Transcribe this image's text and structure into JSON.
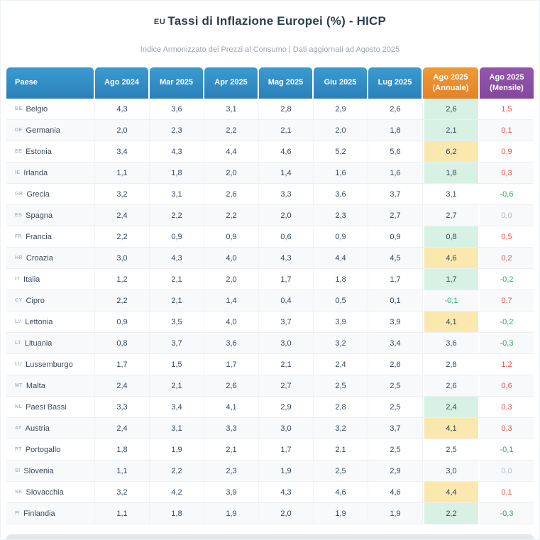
{
  "header": {
    "title_prefix": "EU",
    "title": "Tassi di Inflazione Europei (%) - HICP",
    "subtitle": "Indice Armonizzato dei Prezzi al Consumo | Dati aggiornati ad Agosto 2025"
  },
  "table": {
    "columns": [
      {
        "id": "paese",
        "label": "Paese"
      },
      {
        "id": "ago2024",
        "label": "Ago 2024"
      },
      {
        "id": "mar2025",
        "label": "Mar 2025"
      },
      {
        "id": "apr2025",
        "label": "Apr 2025"
      },
      {
        "id": "mag2025",
        "label": "Mag 2025"
      },
      {
        "id": "giu2025",
        "label": "Giu 2025"
      },
      {
        "id": "lug2025",
        "label": "Lug 2025"
      },
      {
        "id": "ago2025a",
        "label": "Ago 2025",
        "sublabel": "(Annuale)"
      },
      {
        "id": "ago2025m",
        "label": "Ago 2025",
        "sublabel": "(Mensile)"
      }
    ],
    "rows": [
      {
        "code": "BE",
        "country": "Belgio",
        "values": [
          "4,3",
          "3,6",
          "3,1",
          "2,8",
          "2,9",
          "2,6"
        ],
        "annual": "2,6",
        "annual_highlight": "green",
        "annual_color": "dark",
        "monthly": "1,5",
        "monthly_color": "red"
      },
      {
        "code": "DE",
        "country": "Germania",
        "values": [
          "2,0",
          "2,3",
          "2,2",
          "2,1",
          "2,0",
          "1,8"
        ],
        "annual": "2,1",
        "annual_highlight": "green",
        "annual_color": "dark",
        "monthly": "0,1",
        "monthly_color": "red"
      },
      {
        "code": "EE",
        "country": "Estonia",
        "values": [
          "3,4",
          "4,3",
          "4,4",
          "4,6",
          "5,2",
          "5,6"
        ],
        "annual": "6,2",
        "annual_highlight": "yellow",
        "annual_color": "dark",
        "monthly": "0,9",
        "monthly_color": "red"
      },
      {
        "code": "IE",
        "country": "Irlanda",
        "values": [
          "1,1",
          "1,8",
          "2,0",
          "1,4",
          "1,6",
          "1,6"
        ],
        "annual": "1,8",
        "annual_highlight": "green",
        "annual_color": "dark",
        "monthly": "0,3",
        "monthly_color": "red"
      },
      {
        "code": "GR",
        "country": "Grecia",
        "values": [
          "3,2",
          "3,1",
          "2,6",
          "3,3",
          "3,6",
          "3,7"
        ],
        "annual": "3,1",
        "annual_highlight": "none",
        "annual_color": "dark",
        "monthly": "-0,6",
        "monthly_color": "green"
      },
      {
        "code": "ES",
        "country": "Spagna",
        "values": [
          "2,4",
          "2,2",
          "2,2",
          "2,0",
          "2,3",
          "2,7"
        ],
        "annual": "2,7",
        "annual_highlight": "none",
        "annual_color": "dark",
        "monthly": "0,0",
        "monthly_color": "gray"
      },
      {
        "code": "FR",
        "country": "Francia",
        "values": [
          "2,2",
          "0,9",
          "0,9",
          "0,6",
          "0,9",
          "0,9"
        ],
        "annual": "0,8",
        "annual_highlight": "green",
        "annual_color": "dark",
        "monthly": "0,5",
        "monthly_color": "red"
      },
      {
        "code": "HR",
        "country": "Croazia",
        "values": [
          "3,0",
          "4,3",
          "4,0",
          "4,3",
          "4,4",
          "4,5"
        ],
        "annual": "4,6",
        "annual_highlight": "yellow",
        "annual_color": "dark",
        "monthly": "0,2",
        "monthly_color": "red"
      },
      {
        "code": "IT",
        "country": "Italia",
        "values": [
          "1,2",
          "2,1",
          "2,0",
          "1,7",
          "1,8",
          "1,7"
        ],
        "annual": "1,7",
        "annual_highlight": "green",
        "annual_color": "dark",
        "monthly": "-0,2",
        "monthly_color": "green"
      },
      {
        "code": "CY",
        "country": "Cipro",
        "values": [
          "2,2",
          "2,1",
          "1,4",
          "0,4",
          "0,5",
          "0,1"
        ],
        "annual": "-0,1",
        "annual_highlight": "none",
        "annual_color": "green",
        "monthly": "0,7",
        "monthly_color": "red"
      },
      {
        "code": "LV",
        "country": "Lettonia",
        "values": [
          "0,9",
          "3,5",
          "4,0",
          "3,7",
          "3,9",
          "3,9"
        ],
        "annual": "4,1",
        "annual_highlight": "yellow",
        "annual_color": "dark",
        "monthly": "-0,2",
        "monthly_color": "green"
      },
      {
        "code": "LT",
        "country": "Lituania",
        "values": [
          "0,8",
          "3,7",
          "3,6",
          "3,0",
          "3,2",
          "3,4"
        ],
        "annual": "3,6",
        "annual_highlight": "none",
        "annual_color": "dark",
        "monthly": "-0,3",
        "monthly_color": "green"
      },
      {
        "code": "LU",
        "country": "Lussemburgo",
        "values": [
          "1,7",
          "1,5",
          "1,7",
          "2,1",
          "2,4",
          "2,6"
        ],
        "annual": "2,8",
        "annual_highlight": "none",
        "annual_color": "dark",
        "monthly": "1,2",
        "monthly_color": "red"
      },
      {
        "code": "MT",
        "country": "Malta",
        "values": [
          "2,4",
          "2,1",
          "2,6",
          "2,7",
          "2,5",
          "2,5"
        ],
        "annual": "2,6",
        "annual_highlight": "none",
        "annual_color": "dark",
        "monthly": "0,6",
        "monthly_color": "red"
      },
      {
        "code": "NL",
        "country": "Paesi Bassi",
        "values": [
          "3,3",
          "3,4",
          "4,1",
          "2,9",
          "2,8",
          "2,5"
        ],
        "annual": "2,4",
        "annual_highlight": "green",
        "annual_color": "dark",
        "monthly": "0,3",
        "monthly_color": "red"
      },
      {
        "code": "AT",
        "country": "Austria",
        "values": [
          "2,4",
          "3,1",
          "3,3",
          "3,0",
          "3,2",
          "3,7"
        ],
        "annual": "4,1",
        "annual_highlight": "yellow",
        "annual_color": "dark",
        "monthly": "0,3",
        "monthly_color": "red"
      },
      {
        "code": "PT",
        "country": "Portogallo",
        "values": [
          "1,8",
          "1,9",
          "2,1",
          "1,7",
          "2,1",
          "2,5"
        ],
        "annual": "2,5",
        "annual_highlight": "none",
        "annual_color": "dark",
        "monthly": "-0,1",
        "monthly_color": "green"
      },
      {
        "code": "SI",
        "country": "Slovenia",
        "values": [
          "1,1",
          "2,2",
          "2,3",
          "1,9",
          "2,5",
          "2,9"
        ],
        "annual": "3,0",
        "annual_highlight": "none",
        "annual_color": "dark",
        "monthly": "0,0",
        "monthly_color": "gray"
      },
      {
        "code": "SK",
        "country": "Slovacchia",
        "values": [
          "3,2",
          "4,2",
          "3,9",
          "4,3",
          "4,6",
          "4,6"
        ],
        "annual": "4,4",
        "annual_highlight": "yellow",
        "annual_color": "dark",
        "monthly": "0,1",
        "monthly_color": "red"
      },
      {
        "code": "FI",
        "country": "Finlandia",
        "values": [
          "1,1",
          "1,8",
          "1,9",
          "2,0",
          "1,9",
          "1,9"
        ],
        "annual": "2,2",
        "annual_highlight": "green",
        "annual_color": "dark",
        "monthly": "-0,3",
        "monthly_color": "green"
      }
    ]
  },
  "colors": {
    "header_blue": "#2e89c2",
    "header_orange": "#e8912c",
    "header_purple": "#8a4ba0",
    "highlight_green": "#d7f2e4",
    "highlight_yellow": "#fbe8af",
    "positive_red": "#e0544c",
    "negative_green": "#27ae60",
    "neutral_gray": "#b4bcc3"
  }
}
